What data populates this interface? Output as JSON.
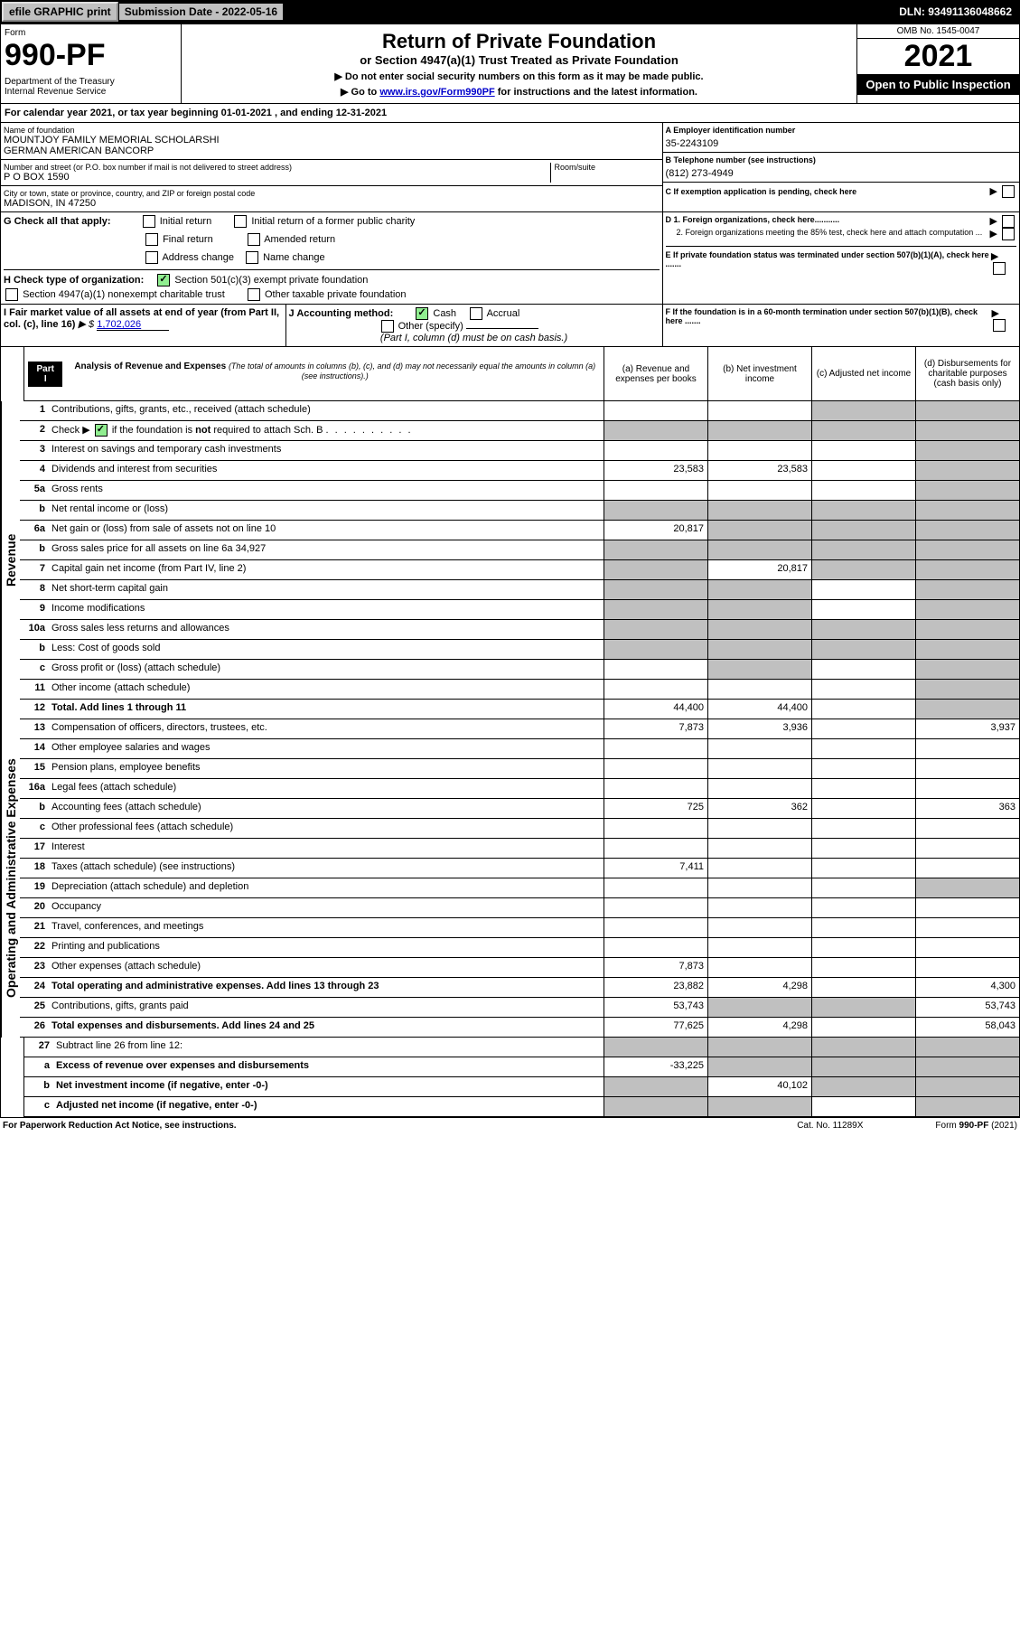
{
  "topbar": {
    "efile": "efile GRAPHIC print",
    "submission": "Submission Date - 2022-05-16",
    "dln": "DLN: 93491136048662"
  },
  "header": {
    "form_label": "Form",
    "form_num": "990-PF",
    "dept": "Department of the Treasury\nInternal Revenue Service",
    "title": "Return of Private Foundation",
    "subtitle": "or Section 4947(a)(1) Trust Treated as Private Foundation",
    "note1": "▶ Do not enter social security numbers on this form as it may be made public.",
    "note2": "▶ Go to www.irs.gov/Form990PF for instructions and the latest information.",
    "omb": "OMB No. 1545-0047",
    "year": "2021",
    "open": "Open to Public Inspection"
  },
  "calyear": "For calendar year 2021, or tax year beginning 01-01-2021                           , and ending 12-31-2021",
  "id": {
    "name_label": "Name of foundation",
    "name": "MOUNTJOY FAMILY MEMORIAL SCHOLARSHI\nGERMAN AMERICAN BANCORP",
    "addr_label": "Number and street (or P.O. box number if mail is not delivered to street address)",
    "addr": "P O BOX 1590",
    "room_label": "Room/suite",
    "city_label": "City or town, state or province, country, and ZIP or foreign postal code",
    "city": "MADISON, IN  47250",
    "a_label": "A Employer identification number",
    "a_val": "35-2243109",
    "b_label": "B Telephone number (see instructions)",
    "b_val": "(812) 273-4949",
    "c_label": "C If exemption application is pending, check here"
  },
  "g": {
    "label": "G Check all that apply:",
    "opts": [
      "Initial return",
      "Initial return of a former public charity",
      "Final return",
      "Amended return",
      "Address change",
      "Name change"
    ]
  },
  "h": {
    "label": "H Check type of organization:",
    "opt1": "Section 501(c)(3) exempt private foundation",
    "opt2": "Section 4947(a)(1) nonexempt charitable trust",
    "opt3": "Other taxable private foundation"
  },
  "i": {
    "label": "I Fair market value of all assets at end of year (from Part II, col. (c), line 16)",
    "arrow": "▶ $",
    "val": "1,702,026"
  },
  "j": {
    "label": "J Accounting method:",
    "cash": "Cash",
    "accrual": "Accrual",
    "other": "Other (specify)",
    "note": "(Part I, column (d) must be on cash basis.)"
  },
  "d": {
    "d1": "D 1. Foreign organizations, check here...........",
    "d2": "2. Foreign organizations meeting the 85% test, check here and attach computation ..."
  },
  "e_label": "E  If private foundation status was terminated under section 507(b)(1)(A), check here .......",
  "f_label": "F  If the foundation is in a 60-month termination under section 507(b)(1)(B), check here .......",
  "part1": {
    "label": "Part I",
    "title": "Analysis of Revenue and Expenses",
    "title_note": "(The total of amounts in columns (b), (c), and (d) may not necessarily equal the amounts in column (a) (see instructions).)",
    "cols": [
      "(a)  Revenue and expenses per books",
      "(b)  Net investment income",
      "(c)  Adjusted net income",
      "(d)  Disbursements for charitable purposes (cash basis only)"
    ]
  },
  "rows": [
    {
      "n": "1",
      "d": "Contributions, gifts, grants, etc., received (attach schedule)",
      "a": "",
      "b": "",
      "c": "g",
      "dd": "g"
    },
    {
      "n": "2",
      "d": "Check ▶ ☑ if the foundation is not required to attach Sch. B",
      "a": "g",
      "b": "g",
      "c": "g",
      "dd": "g"
    },
    {
      "n": "3",
      "d": "Interest on savings and temporary cash investments",
      "a": "",
      "b": "",
      "c": "",
      "dd": "g"
    },
    {
      "n": "4",
      "d": "Dividends and interest from securities",
      "a": "23,583",
      "b": "23,583",
      "c": "",
      "dd": "g"
    },
    {
      "n": "5a",
      "d": "Gross rents",
      "a": "",
      "b": "",
      "c": "",
      "dd": "g"
    },
    {
      "n": "b",
      "d": "Net rental income or (loss)",
      "a": "g",
      "b": "g",
      "c": "g",
      "dd": "g"
    },
    {
      "n": "6a",
      "d": "Net gain or (loss) from sale of assets not on line 10",
      "a": "20,817",
      "b": "g",
      "c": "g",
      "dd": "g"
    },
    {
      "n": "b",
      "d": "Gross sales price for all assets on line 6a           34,927",
      "a": "g",
      "b": "g",
      "c": "g",
      "dd": "g"
    },
    {
      "n": "7",
      "d": "Capital gain net income (from Part IV, line 2)",
      "a": "g",
      "b": "20,817",
      "c": "g",
      "dd": "g"
    },
    {
      "n": "8",
      "d": "Net short-term capital gain",
      "a": "g",
      "b": "g",
      "c": "",
      "dd": "g"
    },
    {
      "n": "9",
      "d": "Income modifications",
      "a": "g",
      "b": "g",
      "c": "",
      "dd": "g"
    },
    {
      "n": "10a",
      "d": "Gross sales less returns and allowances",
      "a": "g",
      "b": "g",
      "c": "g",
      "dd": "g"
    },
    {
      "n": "b",
      "d": "Less: Cost of goods sold",
      "a": "g",
      "b": "g",
      "c": "g",
      "dd": "g"
    },
    {
      "n": "c",
      "d": "Gross profit or (loss) (attach schedule)",
      "a": "",
      "b": "g",
      "c": "",
      "dd": "g"
    },
    {
      "n": "11",
      "d": "Other income (attach schedule)",
      "a": "",
      "b": "",
      "c": "",
      "dd": "g"
    },
    {
      "n": "12",
      "d": "Total. Add lines 1 through 11",
      "a": "44,400",
      "b": "44,400",
      "c": "",
      "dd": "g",
      "bold": true
    }
  ],
  "exp_rows": [
    {
      "n": "13",
      "d": "Compensation of officers, directors, trustees, etc.",
      "a": "7,873",
      "b": "3,936",
      "c": "",
      "dd": "3,937"
    },
    {
      "n": "14",
      "d": "Other employee salaries and wages",
      "a": "",
      "b": "",
      "c": "",
      "dd": ""
    },
    {
      "n": "15",
      "d": "Pension plans, employee benefits",
      "a": "",
      "b": "",
      "c": "",
      "dd": ""
    },
    {
      "n": "16a",
      "d": "Legal fees (attach schedule)",
      "a": "",
      "b": "",
      "c": "",
      "dd": ""
    },
    {
      "n": "b",
      "d": "Accounting fees (attach schedule)",
      "a": "725",
      "b": "362",
      "c": "",
      "dd": "363"
    },
    {
      "n": "c",
      "d": "Other professional fees (attach schedule)",
      "a": "",
      "b": "",
      "c": "",
      "dd": ""
    },
    {
      "n": "17",
      "d": "Interest",
      "a": "",
      "b": "",
      "c": "",
      "dd": ""
    },
    {
      "n": "18",
      "d": "Taxes (attach schedule) (see instructions)",
      "a": "7,411",
      "b": "",
      "c": "",
      "dd": ""
    },
    {
      "n": "19",
      "d": "Depreciation (attach schedule) and depletion",
      "a": "",
      "b": "",
      "c": "",
      "dd": "g"
    },
    {
      "n": "20",
      "d": "Occupancy",
      "a": "",
      "b": "",
      "c": "",
      "dd": ""
    },
    {
      "n": "21",
      "d": "Travel, conferences, and meetings",
      "a": "",
      "b": "",
      "c": "",
      "dd": ""
    },
    {
      "n": "22",
      "d": "Printing and publications",
      "a": "",
      "b": "",
      "c": "",
      "dd": ""
    },
    {
      "n": "23",
      "d": "Other expenses (attach schedule)",
      "a": "7,873",
      "b": "",
      "c": "",
      "dd": ""
    },
    {
      "n": "24",
      "d": "Total operating and administrative expenses. Add lines 13 through 23",
      "a": "23,882",
      "b": "4,298",
      "c": "",
      "dd": "4,300",
      "bold": true
    },
    {
      "n": "25",
      "d": "Contributions, gifts, grants paid",
      "a": "53,743",
      "b": "g",
      "c": "g",
      "dd": "53,743"
    },
    {
      "n": "26",
      "d": "Total expenses and disbursements. Add lines 24 and 25",
      "a": "77,625",
      "b": "4,298",
      "c": "",
      "dd": "58,043",
      "bold": true
    }
  ],
  "sub_rows": [
    {
      "n": "27",
      "d": "Subtract line 26 from line 12:",
      "a": "g",
      "b": "g",
      "c": "g",
      "dd": "g"
    },
    {
      "n": "a",
      "d": "Excess of revenue over expenses and disbursements",
      "a": "-33,225",
      "b": "g",
      "c": "g",
      "dd": "g",
      "bold": true
    },
    {
      "n": "b",
      "d": "Net investment income (if negative, enter -0-)",
      "a": "g",
      "b": "40,102",
      "c": "g",
      "dd": "g",
      "bold": true
    },
    {
      "n": "c",
      "d": "Adjusted net income (if negative, enter -0-)",
      "a": "g",
      "b": "g",
      "c": "",
      "dd": "g",
      "bold": true
    }
  ],
  "side": {
    "rev": "Revenue",
    "exp": "Operating and Administrative Expenses"
  },
  "footer": {
    "pra": "For Paperwork Reduction Act Notice, see instructions.",
    "cat": "Cat. No. 11289X",
    "form": "Form 990-PF (2021)"
  }
}
